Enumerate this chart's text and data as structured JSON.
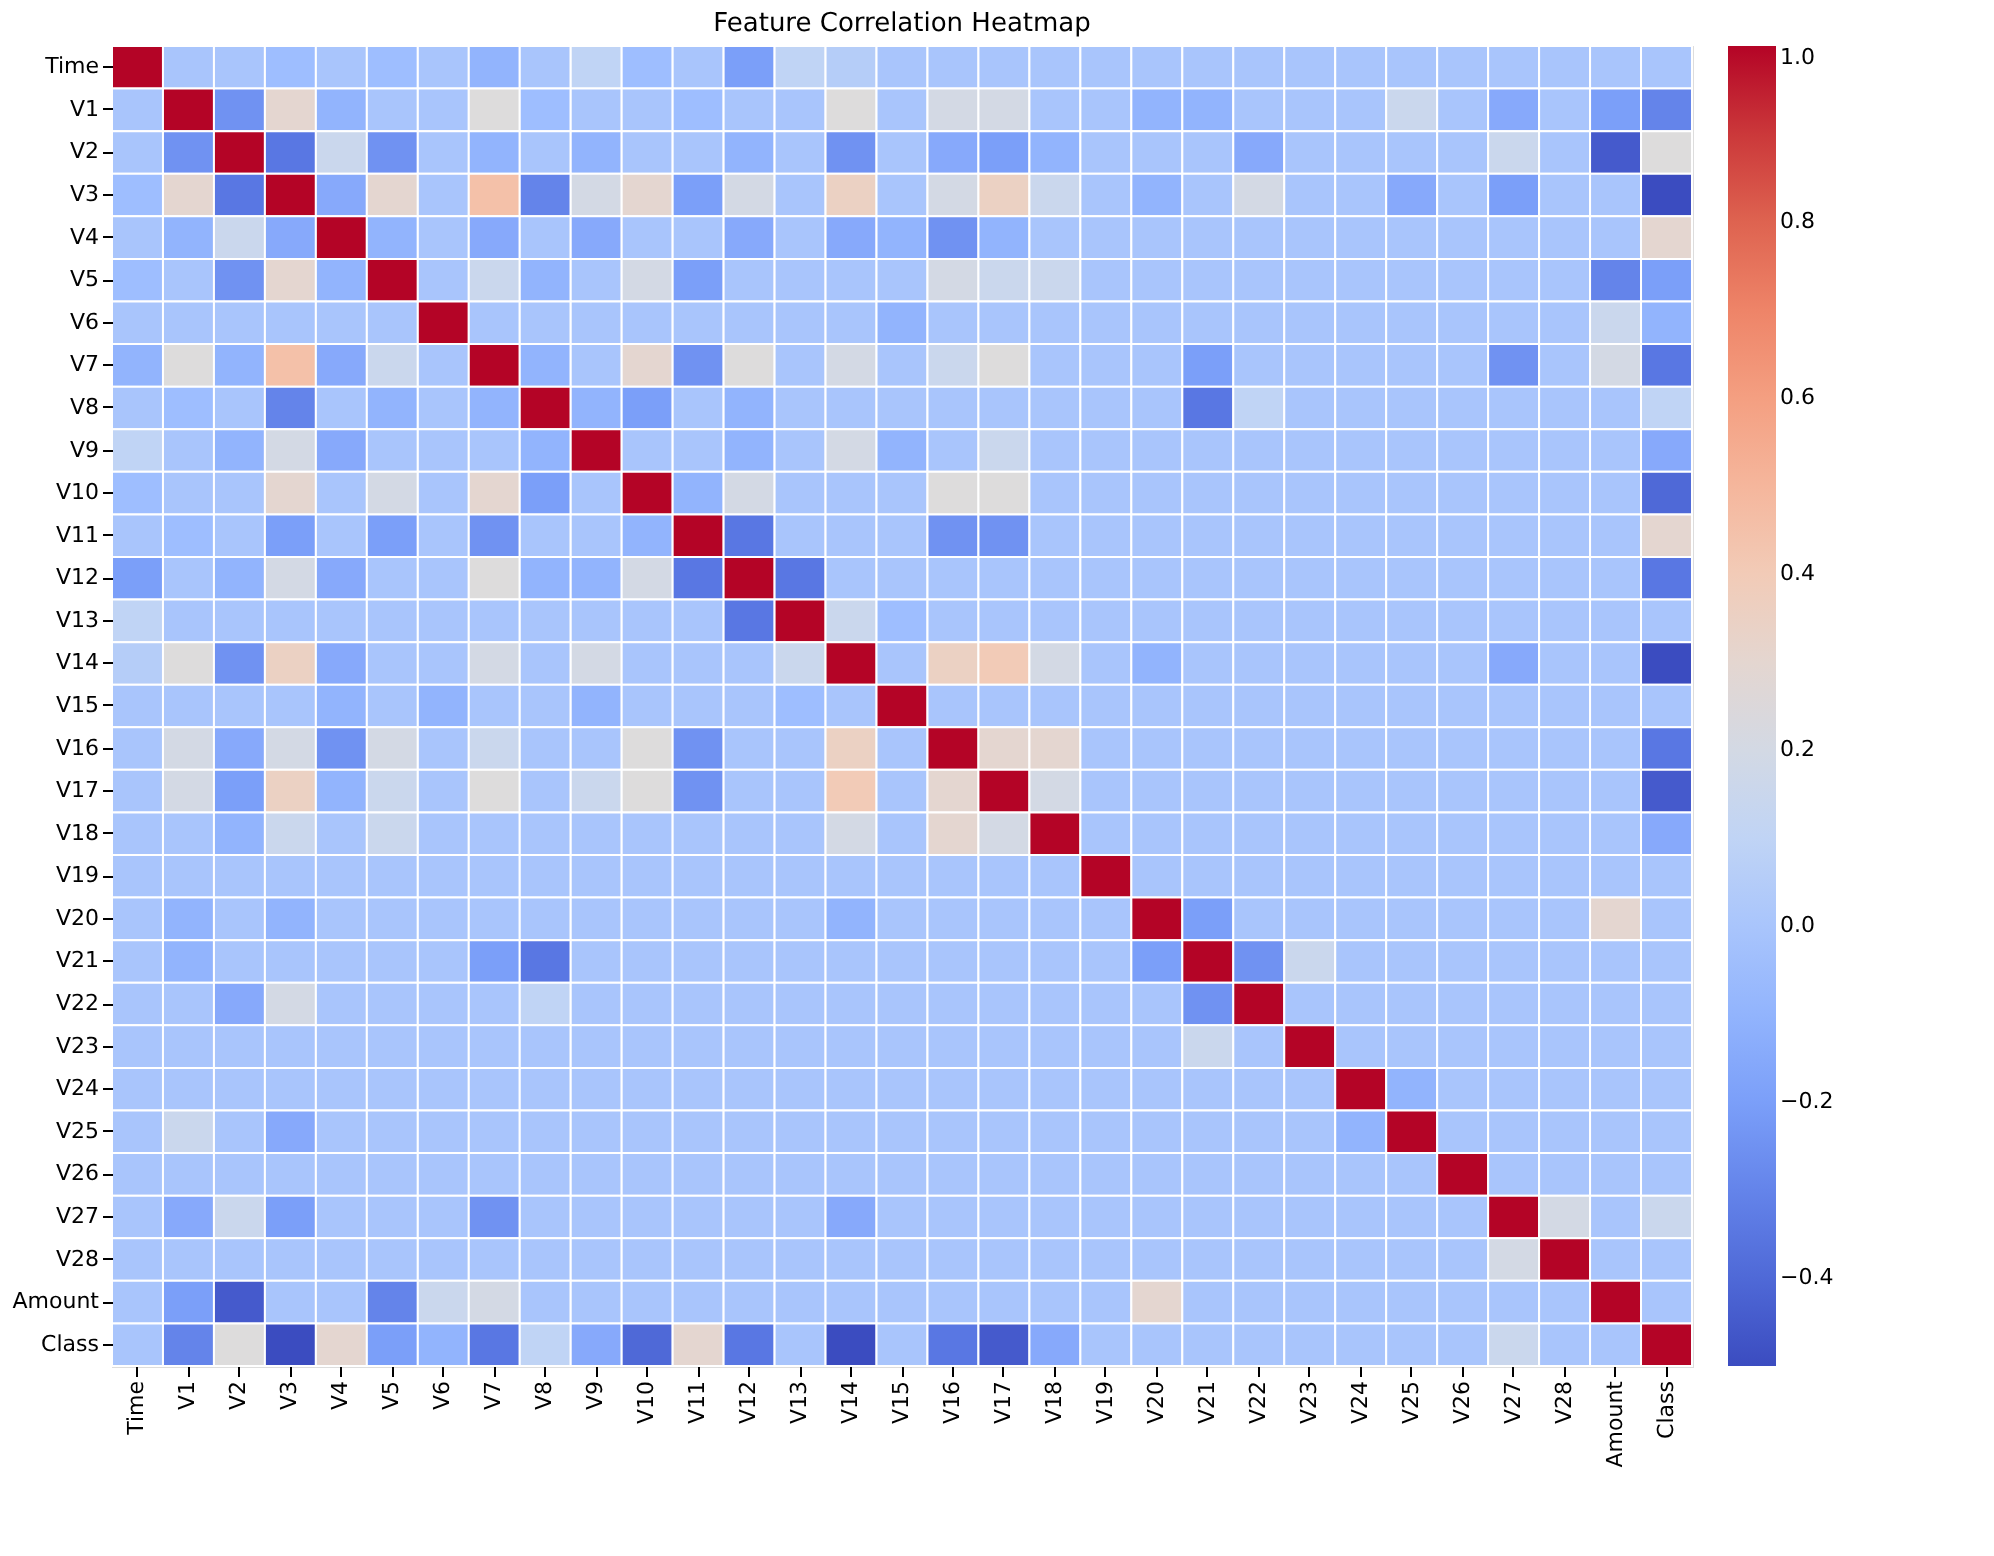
{
  "chart_data": {
    "type": "heatmap",
    "title": "Feature Correlation Heatmap",
    "categories": [
      "Time",
      "V1",
      "V2",
      "V3",
      "V4",
      "V5",
      "V6",
      "V7",
      "V8",
      "V9",
      "V10",
      "V11",
      "V12",
      "V13",
      "V14",
      "V15",
      "V16",
      "V17",
      "V18",
      "V19",
      "V20",
      "V21",
      "V22",
      "V23",
      "V24",
      "V25",
      "V26",
      "V27",
      "V28",
      "Amount",
      "Class"
    ],
    "y_categories": [
      "Time",
      "V1",
      "V2",
      "V3",
      "V4",
      "V5",
      "V6",
      "V7",
      "V8",
      "V9",
      "V10",
      "V11",
      "V12",
      "V13",
      "V14",
      "V15",
      "V16",
      "V17",
      "V18",
      "V19",
      "V20",
      "V21",
      "V22",
      "V23",
      "V24",
      "V25",
      "V26",
      "V27",
      "V28",
      "Amount",
      "Class"
    ],
    "clim": [
      -0.5,
      1.0
    ],
    "cticks": [
      {
        "value": -0.4,
        "label": "−0.4"
      },
      {
        "value": -0.2,
        "label": "−0.2"
      },
      {
        "value": 0.0,
        "label": "0.0"
      },
      {
        "value": 0.2,
        "label": "0.2"
      },
      {
        "value": 0.4,
        "label": "0.4"
      },
      {
        "value": 0.6,
        "label": "0.6"
      },
      {
        "value": 0.8,
        "label": "0.8"
      },
      {
        "value": 1.0,
        "label": "1.0"
      }
    ],
    "cells": [
      [
        1,
        0,
        0,
        -0.05,
        0,
        -0.05,
        0,
        -0.1,
        0,
        0.1,
        -0.05,
        0,
        -0.2,
        0.1,
        0.05,
        0,
        0,
        0,
        0,
        0,
        0,
        0,
        0,
        0,
        0,
        0,
        0,
        0,
        0,
        0,
        0
      ],
      [
        0,
        1,
        -0.25,
        0.3,
        -0.1,
        0,
        0,
        0.25,
        -0.05,
        0,
        0,
        -0.05,
        0,
        0,
        0.25,
        0,
        0.2,
        0.2,
        0,
        0,
        -0.1,
        -0.1,
        0,
        0,
        0,
        0.15,
        0,
        -0.15,
        0,
        -0.2,
        -0.3
      ],
      [
        0,
        -0.25,
        1,
        -0.35,
        0.15,
        -0.25,
        0,
        -0.1,
        0,
        -0.1,
        0,
        0,
        -0.1,
        0,
        -0.25,
        0,
        -0.15,
        -0.2,
        -0.1,
        0,
        0,
        0,
        -0.15,
        0,
        0,
        0,
        0,
        0.15,
        0,
        -0.45,
        0.25
      ],
      [
        -0.05,
        0.3,
        -0.35,
        1,
        -0.15,
        0.3,
        0,
        0.45,
        -0.3,
        0.2,
        0.3,
        -0.2,
        0.2,
        0,
        0.35,
        0,
        0.2,
        0.35,
        0.15,
        0,
        -0.1,
        0,
        0.2,
        0,
        0,
        -0.15,
        0,
        -0.2,
        0,
        0,
        -0.5
      ],
      [
        0,
        -0.1,
        0.15,
        -0.15,
        1,
        -0.1,
        0,
        -0.15,
        0,
        -0.15,
        0,
        0,
        -0.15,
        0,
        -0.15,
        -0.1,
        -0.25,
        -0.1,
        0,
        0,
        0,
        0,
        0,
        0,
        0,
        0,
        0,
        0,
        0,
        0,
        0.3
      ],
      [
        -0.05,
        0,
        -0.25,
        0.3,
        -0.1,
        1,
        0,
        0.15,
        -0.1,
        0,
        0.2,
        -0.2,
        0,
        0,
        0,
        0,
        0.2,
        0.15,
        0.15,
        0,
        0,
        0,
        0,
        0,
        0,
        0,
        0,
        0,
        0,
        -0.3,
        -0.2
      ],
      [
        0,
        0,
        0,
        0,
        0,
        0,
        1,
        0,
        0,
        0,
        0,
        0,
        0,
        0,
        0,
        -0.1,
        0,
        0,
        0,
        0,
        0,
        0,
        0,
        0,
        0,
        0,
        0,
        0,
        0,
        0.15,
        -0.1
      ],
      [
        -0.1,
        0.25,
        -0.1,
        0.45,
        -0.15,
        0.15,
        0,
        1,
        -0.1,
        0,
        0.3,
        -0.25,
        0.25,
        0,
        0.2,
        0,
        0.15,
        0.25,
        0,
        0,
        0,
        -0.2,
        0,
        0,
        0,
        0,
        0,
        -0.25,
        0,
        0.2,
        -0.35
      ],
      [
        0,
        -0.05,
        0,
        -0.3,
        0,
        -0.1,
        0,
        -0.1,
        1,
        -0.1,
        -0.2,
        0,
        -0.1,
        0,
        0,
        0,
        0,
        0,
        0,
        0,
        0,
        -0.35,
        0.1,
        0,
        0,
        0,
        0,
        0,
        0,
        0,
        0.1
      ],
      [
        0.1,
        0,
        -0.1,
        0.2,
        -0.15,
        0,
        0,
        0,
        -0.1,
        1,
        0,
        0,
        -0.1,
        0,
        0.2,
        -0.1,
        0,
        0.15,
        0,
        0,
        0,
        0,
        0,
        0,
        0,
        0,
        0,
        0,
        0,
        0,
        -0.15
      ],
      [
        -0.05,
        0,
        0,
        0.3,
        0,
        0.2,
        0,
        0.3,
        -0.2,
        0,
        1,
        -0.1,
        0.2,
        0,
        0,
        0,
        0.25,
        0.25,
        0,
        0,
        0,
        0,
        0,
        0,
        0,
        0,
        0,
        0,
        0,
        0,
        -0.4
      ],
      [
        0,
        -0.05,
        0,
        -0.2,
        0,
        -0.2,
        0,
        -0.25,
        0,
        0,
        -0.1,
        1,
        -0.35,
        0,
        0,
        0,
        -0.25,
        -0.25,
        0,
        0,
        0,
        0,
        0,
        0,
        0,
        0,
        0,
        0,
        0,
        0,
        0.3
      ],
      [
        -0.2,
        0,
        -0.1,
        0.2,
        -0.15,
        0,
        0,
        0.25,
        -0.1,
        -0.1,
        0.2,
        -0.35,
        1,
        -0.35,
        0,
        0,
        0,
        0,
        0,
        0,
        0,
        0,
        0,
        0,
        0,
        0,
        0,
        0,
        0,
        0,
        -0.35
      ],
      [
        0.1,
        0,
        0,
        0,
        0,
        0,
        0,
        0,
        0,
        0,
        0,
        0,
        -0.35,
        1,
        0.15,
        -0.05,
        0,
        0,
        0,
        0,
        0,
        0,
        0,
        0,
        0,
        0,
        0,
        0,
        0,
        0,
        0
      ],
      [
        0.05,
        0.25,
        -0.25,
        0.35,
        -0.15,
        0,
        0,
        0.2,
        0,
        0.2,
        0,
        0,
        0,
        0.15,
        1,
        0,
        0.35,
        0.4,
        0.2,
        0,
        -0.1,
        0,
        0,
        0,
        0,
        0,
        0,
        -0.15,
        0,
        0,
        -0.5
      ],
      [
        0,
        0,
        0,
        0,
        -0.1,
        0,
        -0.1,
        0,
        0,
        -0.1,
        0,
        0,
        0,
        -0.05,
        0,
        1,
        0,
        0,
        0,
        0,
        0,
        0,
        0,
        0,
        0,
        0,
        0,
        0,
        0,
        0,
        0
      ],
      [
        0,
        0.2,
        -0.15,
        0.2,
        -0.25,
        0.2,
        0,
        0.15,
        0,
        0,
        0.25,
        -0.25,
        0,
        0,
        0.35,
        0,
        1,
        0.3,
        0.3,
        0,
        0,
        0,
        0,
        0,
        0,
        0,
        0,
        0,
        0,
        0,
        -0.35
      ],
      [
        0,
        0.2,
        -0.2,
        0.35,
        -0.1,
        0.15,
        0,
        0.25,
        0,
        0.15,
        0.25,
        -0.25,
        0,
        0,
        0.4,
        0,
        0.3,
        1,
        0.2,
        0,
        0,
        0,
        0,
        0,
        0,
        0,
        0,
        0,
        0,
        0,
        -0.45
      ],
      [
        0,
        0,
        -0.1,
        0.15,
        0,
        0.15,
        0,
        0,
        0,
        0,
        0,
        0,
        0,
        0,
        0.2,
        0,
        0.3,
        0.2,
        1,
        0,
        0,
        0,
        0,
        0,
        0,
        0,
        0,
        0,
        0,
        0,
        -0.15
      ],
      [
        0,
        0,
        0,
        0,
        0,
        0,
        0,
        0,
        0,
        0,
        0,
        0,
        0,
        0,
        0,
        0,
        0,
        0,
        0,
        1,
        0,
        0,
        0,
        0,
        0,
        0,
        0,
        0,
        0,
        0,
        0
      ],
      [
        0,
        -0.1,
        0,
        -0.1,
        0,
        0,
        0,
        0,
        0,
        0,
        0,
        0,
        0,
        0,
        -0.1,
        0,
        0,
        0,
        0,
        0,
        1,
        -0.2,
        0,
        0,
        0,
        0,
        0,
        0,
        0,
        0.3,
        0
      ],
      [
        0,
        -0.1,
        0,
        0,
        0,
        0,
        0,
        -0.2,
        -0.35,
        0,
        0,
        0,
        0,
        0,
        0,
        0,
        0,
        0,
        0,
        0,
        -0.2,
        1,
        -0.25,
        0.15,
        0,
        0,
        0,
        0,
        0,
        0,
        0
      ],
      [
        0,
        0,
        -0.15,
        0.2,
        0,
        0,
        0,
        0,
        0.1,
        0,
        0,
        0,
        0,
        0,
        0,
        0,
        0,
        0,
        0,
        0,
        0,
        -0.25,
        1,
        0,
        0,
        0,
        0,
        0,
        0,
        0,
        0
      ],
      [
        0,
        0,
        0,
        0,
        0,
        0,
        0,
        0,
        0,
        0,
        0,
        0,
        0,
        0,
        0,
        0,
        0,
        0,
        0,
        0,
        0,
        0.15,
        0,
        1,
        0,
        0,
        0,
        0,
        0,
        0,
        0
      ],
      [
        0,
        0,
        0,
        0,
        0,
        0,
        0,
        0,
        0,
        0,
        0,
        0,
        0,
        0,
        0,
        0,
        0,
        0,
        0,
        0,
        0,
        0,
        0,
        0,
        1,
        -0.1,
        0,
        0,
        0,
        0,
        0
      ],
      [
        0,
        0.15,
        0,
        -0.15,
        0,
        0,
        0,
        0,
        0,
        0,
        0,
        0,
        0,
        0,
        0,
        0,
        0,
        0,
        0,
        0,
        0,
        0,
        0,
        0,
        -0.1,
        1,
        0,
        0,
        0,
        0,
        0
      ],
      [
        0,
        0,
        0,
        0,
        0,
        0,
        0,
        0,
        0,
        0,
        0,
        0,
        0,
        0,
        0,
        0,
        0,
        0,
        0,
        0,
        0,
        0,
        0,
        0,
        0,
        0,
        1,
        0,
        0,
        0,
        0
      ],
      [
        0,
        -0.15,
        0.15,
        -0.2,
        0,
        0,
        0,
        -0.25,
        0,
        0,
        0,
        0,
        0,
        0,
        -0.15,
        0,
        0,
        0,
        0,
        0,
        0,
        0,
        0,
        0,
        0,
        0,
        0,
        1,
        0.2,
        0,
        0.15
      ],
      [
        0,
        0,
        0,
        0,
        0,
        0,
        0,
        0,
        0,
        0,
        0,
        0,
        0,
        0,
        0,
        0,
        0,
        0,
        0,
        0,
        0,
        0,
        0,
        0,
        0,
        0,
        0,
        0.2,
        1,
        0,
        0
      ],
      [
        0,
        -0.2,
        -0.45,
        0,
        0,
        -0.3,
        0.15,
        0.2,
        0,
        0,
        0,
        0,
        0,
        0,
        0,
        0,
        0,
        0,
        0,
        0,
        0.3,
        0,
        0,
        0,
        0,
        0,
        0,
        0,
        0,
        1,
        0
      ],
      [
        0,
        -0.3,
        0.25,
        -0.5,
        0.3,
        -0.2,
        -0.1,
        -0.35,
        0.1,
        -0.15,
        -0.4,
        0.3,
        -0.35,
        0,
        -0.5,
        0,
        -0.35,
        -0.45,
        -0.15,
        0,
        0,
        0,
        0,
        0,
        0,
        0,
        0,
        0.15,
        0,
        0,
        1
      ]
    ]
  }
}
